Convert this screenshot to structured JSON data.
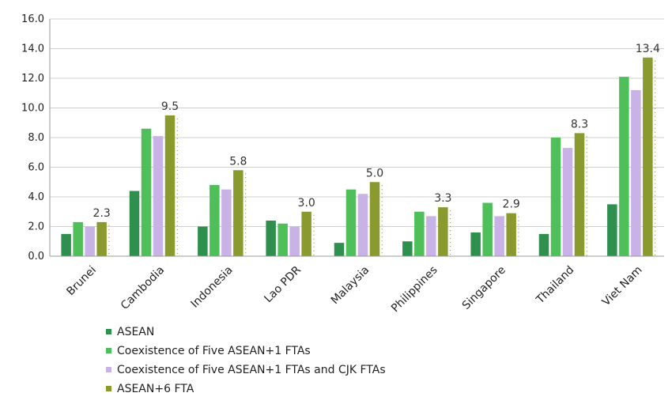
{
  "chart_data": {
    "type": "bar",
    "categories": [
      "Brunei",
      "Cambodia",
      "Indonesia",
      "Lao PDR",
      "Malaysia",
      "Philippines",
      "Singapore",
      "Thailand",
      "Viet Nam"
    ],
    "series": [
      {
        "name": "ASEAN",
        "color": "#2f8f4e",
        "values": [
          1.5,
          4.4,
          2.0,
          2.4,
          0.9,
          1.0,
          1.6,
          1.5,
          3.5
        ]
      },
      {
        "name": "Coexistence of Five ASEAN+1 FTAs",
        "color": "#4fbf5a",
        "values": [
          2.3,
          8.6,
          4.8,
          2.2,
          4.5,
          3.0,
          3.6,
          8.0,
          12.1
        ]
      },
      {
        "name": "Coexistence of Five ASEAN+1 FTAs and CJK FTAs",
        "color": "#c9b3e6",
        "values": [
          2.0,
          8.1,
          4.5,
          2.0,
          4.2,
          2.7,
          2.7,
          7.3,
          11.2
        ]
      },
      {
        "name": "ASEAN+6 FTA",
        "color": "#8a9a2e",
        "values": [
          2.3,
          9.5,
          5.8,
          3.0,
          5.0,
          3.3,
          2.9,
          8.3,
          13.4
        ]
      }
    ],
    "data_labels": [
      "2.3",
      "9.5",
      "5.8",
      "3.0",
      "5.0",
      "3.3",
      "2.9",
      "8.3",
      "13.4"
    ],
    "yticks": [
      "0.0",
      "2.0",
      "4.0",
      "6.0",
      "8.0",
      "10.0",
      "12.0",
      "14.0",
      "16.0"
    ],
    "ylim": [
      0,
      16
    ],
    "grid": true,
    "legend_position": "bottom",
    "title": "",
    "xlabel": "",
    "ylabel": ""
  }
}
